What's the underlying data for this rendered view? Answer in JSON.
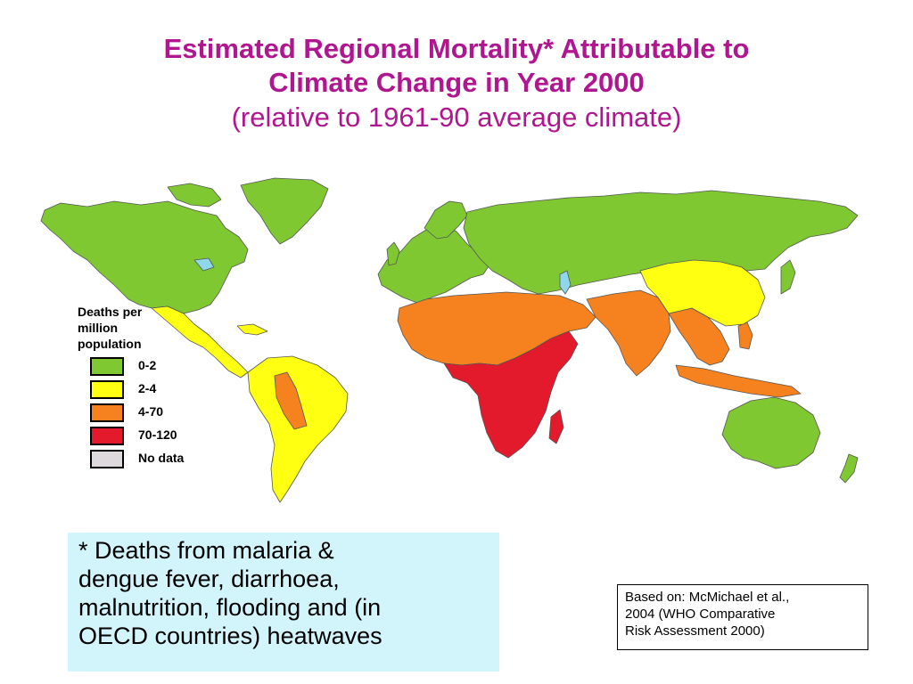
{
  "title": {
    "line1": "Estimated Regional Mortality* Attributable to",
    "line2": "Climate Change in Year 2000",
    "line3": "(relative to 1961-90 average climate)"
  },
  "legend": {
    "title_line1": "Deaths per",
    "title_line2": "million",
    "title_line3": "population",
    "items": [
      {
        "label": "0-2",
        "color": "#7fc832"
      },
      {
        "label": "2-4",
        "color": "#ffff11"
      },
      {
        "label": "4-70",
        "color": "#f5821f"
      },
      {
        "label": "70-120",
        "color": "#e3192c"
      },
      {
        "label": "No data",
        "color": "#ddd9dd"
      }
    ]
  },
  "map": {
    "regions": [
      {
        "name": "North America",
        "category": "0-2"
      },
      {
        "name": "Greenland",
        "category": "0-2"
      },
      {
        "name": "Europe",
        "category": "0-2"
      },
      {
        "name": "Russia and Central Asia",
        "category": "0-2"
      },
      {
        "name": "Australia",
        "category": "0-2"
      },
      {
        "name": "New Zealand",
        "category": "0-2"
      },
      {
        "name": "Mexico and Central America",
        "category": "2-4"
      },
      {
        "name": "South America",
        "category": "2-4"
      },
      {
        "name": "China",
        "category": "2-4"
      },
      {
        "name": "North Africa and Middle East",
        "category": "4-70"
      },
      {
        "name": "South Asia",
        "category": "4-70"
      },
      {
        "name": "Southeast Asia",
        "category": "4-70"
      },
      {
        "name": "Sub-Saharan Africa",
        "category": "70-120"
      }
    ],
    "ocean_color": "#ffffff",
    "border_color": "#555555"
  },
  "footnote": {
    "line1": "* Deaths from malaria &",
    "line2": "dengue fever, diarrhoea,",
    "line3": "malnutrition, flooding and (in",
    "line4": "OECD countries) heatwaves",
    "background": "#d2f5fb"
  },
  "source": {
    "line1": "Based on: McMichael et al.,",
    "line2": "2004  (WHO Comparative",
    "line3": "Risk Assessment 2000)"
  }
}
